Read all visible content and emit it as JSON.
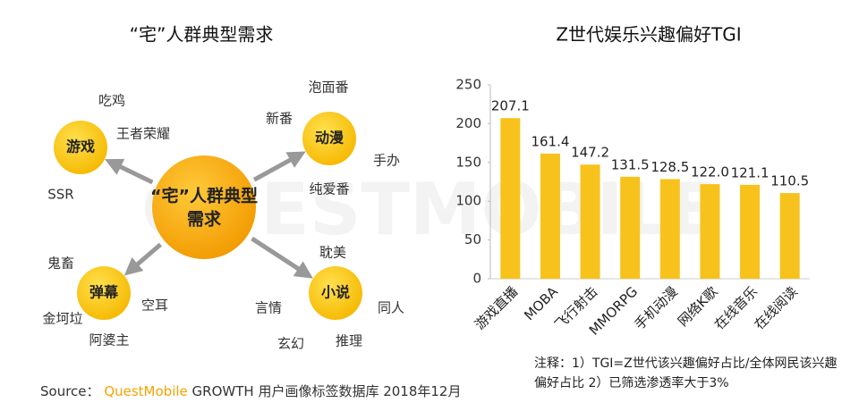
{
  "diagram": {
    "title": "“宅”人群典型需求",
    "center": [
      "“宅”人群典型",
      "需求"
    ],
    "nodes": [
      {
        "label": "游戏",
        "items": [
          "吃鸡",
          "王者荣耀",
          "SSR"
        ]
      },
      {
        "label": "动漫",
        "items": [
          "泡面番",
          "新番",
          "手办",
          "纯爱番"
        ]
      },
      {
        "label": "弹幕",
        "items": [
          "鬼畜",
          "金坷垃",
          "阿婆主",
          "空耳"
        ]
      },
      {
        "label": "小说",
        "items": [
          "耽美",
          "言情",
          "玄幻",
          "推理",
          "同人"
        ]
      }
    ]
  },
  "chart_data": {
    "type": "bar",
    "title": "Z世代娱乐兴趣偏好TGI",
    "categories": [
      "游戏直播",
      "MOBA",
      "飞行射击",
      "MMORPG",
      "手机动漫",
      "网络K歌",
      "在线音乐",
      "在线阅读"
    ],
    "values": [
      207.1,
      161.4,
      147.2,
      131.5,
      128.5,
      122.0,
      121.1,
      110.5
    ],
    "value_labels": [
      "207.1",
      "161.4",
      "147.2",
      "131.5",
      "128.5",
      "122.0",
      "121.1",
      "110.5"
    ],
    "color": "#f7c21b",
    "ylim": [
      0,
      250
    ],
    "yticks": [
      0,
      50,
      100,
      150,
      200,
      250
    ],
    "grid": false
  },
  "watermark": "QUESTMOBILE",
  "source": {
    "prefix": "Source：",
    "brand": "QuestMobile",
    "text": "GROWTH 用户画像标签数据库 2018年12月"
  },
  "note": "注释：1）TGI=Z世代该兴趣偏好占比/全体网民该兴趣偏好占比 2）已筛选渗透率大于3%"
}
